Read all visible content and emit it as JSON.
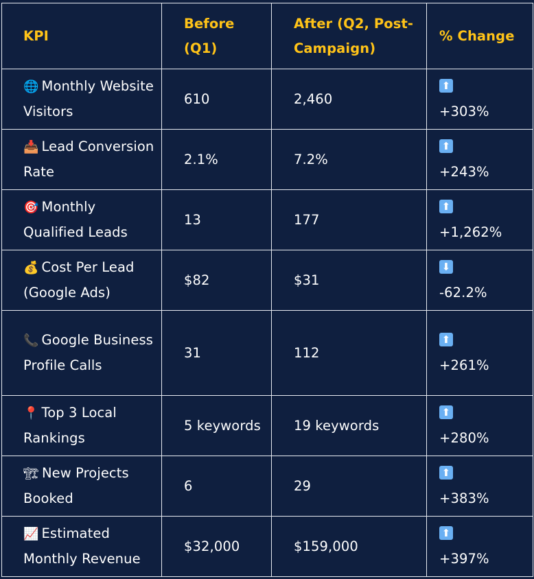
{
  "headers": [
    "KPI",
    "Before (Q1)",
    "After (Q2, Post-Campaign)",
    "% Change"
  ],
  "rows": [
    {
      "icon": "🌐",
      "icon_name": "globe-icon",
      "kpi": "Monthly Website Visitors",
      "before": "610",
      "after": "2,460",
      "arrow": "⬆",
      "arrow_name": "up-arrow-icon",
      "change": "+303%"
    },
    {
      "icon": "📥",
      "icon_name": "inbox-tray-icon",
      "kpi": "Lead Conversion Rate",
      "before": "2.1%",
      "after": "7.2%",
      "arrow": "⬆",
      "arrow_name": "up-arrow-icon",
      "change": "+243%"
    },
    {
      "icon": "🎯",
      "icon_name": "target-icon",
      "kpi": "Monthly Qualified Leads",
      "before": "13",
      "after": "177",
      "arrow": "⬆",
      "arrow_name": "up-arrow-icon",
      "change": "+1,262%"
    },
    {
      "icon": "💰",
      "icon_name": "money-bag-icon",
      "kpi": "Cost Per Lead (Google Ads)",
      "before": "$82",
      "after": "$31",
      "arrow": "⬇",
      "arrow_name": "down-arrow-icon",
      "change": "-62.2%"
    },
    {
      "icon": "📞",
      "icon_name": "phone-icon",
      "kpi": "Google Business Profile Calls",
      "before": "31",
      "after": "112",
      "arrow": "⬆",
      "arrow_name": "up-arrow-icon",
      "change": "+261%"
    },
    {
      "icon": "📍",
      "icon_name": "pin-icon",
      "kpi": "Top 3 Local Rankings",
      "before": "5 keywords",
      "after": "19 keywords",
      "arrow": "⬆",
      "arrow_name": "up-arrow-icon",
      "change": "+280%"
    },
    {
      "icon": "🏗",
      "icon_name": "construction-icon",
      "kpi": "New Projects Booked",
      "before": "6",
      "after": "29",
      "arrow": "⬆",
      "arrow_name": "up-arrow-icon",
      "change": "+383%"
    },
    {
      "icon": "📈",
      "icon_name": "chart-increasing-icon",
      "kpi": "Estimated Monthly Revenue",
      "before": "$32,000",
      "after": "$159,000",
      "arrow": "⬆",
      "arrow_name": "up-arrow-icon",
      "change": "+397%"
    }
  ],
  "colors": {
    "background": "#0f1f3f",
    "header_text": "#ffc318",
    "body_text": "#ffffff",
    "border": "#e9ecf2",
    "arrow_badge": "#6ab0f3"
  }
}
